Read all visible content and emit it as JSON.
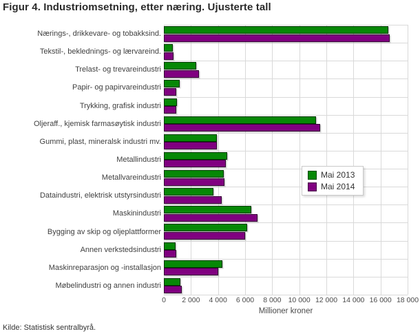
{
  "title": "Figur 4. Industriomsetning, etter næring. Ujusterte tall",
  "source": "Kilde: Statistisk sentralbyrå.",
  "colors": {
    "mai_2013": "#068806",
    "mai_2014": "#800080",
    "grid": "#d9d9d9",
    "title_text": "#2b2b2b",
    "axis_text": "#4a4a4a",
    "label_text": "#3f3f3f"
  },
  "legend": {
    "items": [
      {
        "label": "Mai 2013",
        "color": "#068806"
      },
      {
        "label": "Mai 2014",
        "color": "#800080"
      }
    ]
  },
  "chart_data": {
    "type": "bar",
    "orientation": "horizontal",
    "title": "Figur 4. Industriomsetning, etter næring. Ujusterte tall",
    "xlabel": "Millioner kroner",
    "ylabel": "",
    "xlim": [
      0,
      18000
    ],
    "grid": true,
    "legend_position": "middle-right",
    "categories": [
      "Nærings-, drikkevare- og tobakksind.",
      "Tekstil-, beklednings- og lærvareind.",
      "Trelast- og trevareindustri",
      "Papir- og papirvareindustri",
      "Trykking, grafisk industri",
      "Oljeraff., kjemisk farmasøytisk industri",
      "Gummi, plast, mineralsk industri mv.",
      "Metallindustri",
      "Metallvareindustri",
      "Dataindustri, elektrisk utstyrsindustri",
      "Maskinindustri",
      "Bygging av skip og oljeplattformer",
      "Annen verkstedsindustri",
      "Maskinreparasjon og -installasjon",
      "Møbelindustri og annen industri"
    ],
    "series": [
      {
        "name": "Mai 2013",
        "color": "#068806",
        "values": [
          16600,
          680,
          2400,
          1170,
          990,
          11250,
          3900,
          4700,
          4400,
          3680,
          6480,
          6160,
          850,
          4300,
          1240
        ]
      },
      {
        "name": "Mai 2014",
        "color": "#800080",
        "values": [
          16700,
          710,
          2600,
          900,
          890,
          11550,
          3900,
          4600,
          4450,
          4270,
          6900,
          6000,
          900,
          4030,
          1340
        ]
      }
    ],
    "xticks": [
      0,
      2000,
      4000,
      6000,
      8000,
      10000,
      12000,
      14000,
      16000,
      18000
    ],
    "xtick_labels": [
      "0",
      "2 000",
      "4 000",
      "6 000",
      "8 000",
      "10 000",
      "12 000",
      "14 000",
      "16 000",
      "18 000"
    ]
  }
}
